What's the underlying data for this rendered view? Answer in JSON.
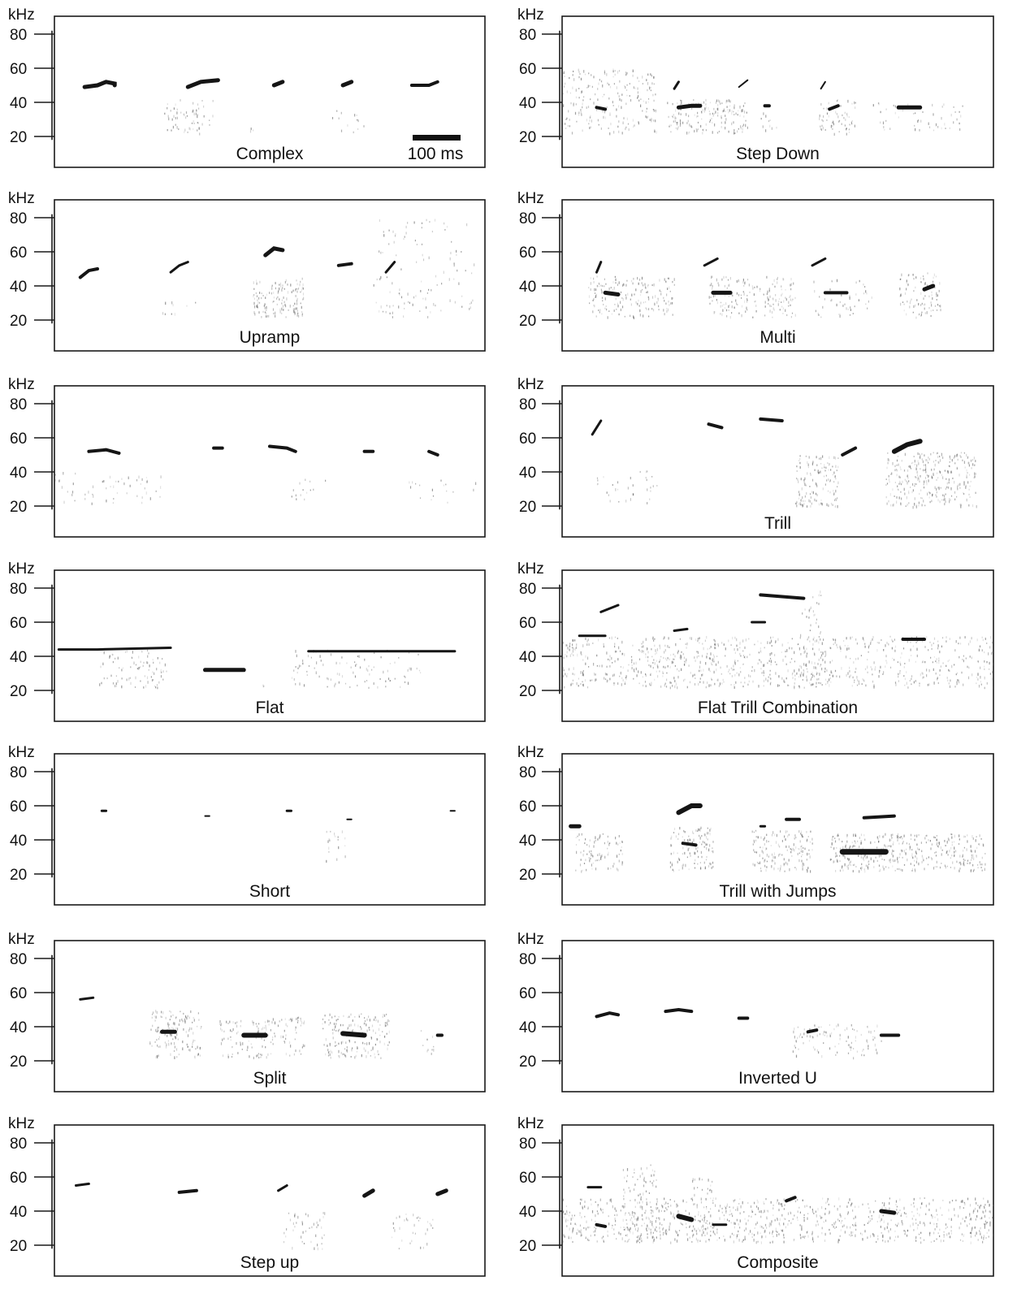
{
  "axis": {
    "unit": "kHz",
    "ticks": [
      "80",
      "60",
      "40",
      "20"
    ],
    "tick_values": [
      80,
      60,
      40,
      20
    ],
    "range_khz": [
      10,
      90
    ]
  },
  "scale_bar": {
    "label": "100 ms",
    "duration_ms": 100
  },
  "panels": [
    {
      "label": "Complex"
    },
    {
      "label": "Step Down"
    },
    {
      "label": "Upramp"
    },
    {
      "label": "Multi"
    },
    {
      "label": ""
    },
    {
      "label": "Trill"
    },
    {
      "label": "Flat"
    },
    {
      "label": "Flat Trill Combination"
    },
    {
      "label": "Short"
    },
    {
      "label": "Trill with Jumps"
    },
    {
      "label": "Split"
    },
    {
      "label": "Inverted U"
    },
    {
      "label": "Step up"
    },
    {
      "label": "Composite"
    }
  ]
}
